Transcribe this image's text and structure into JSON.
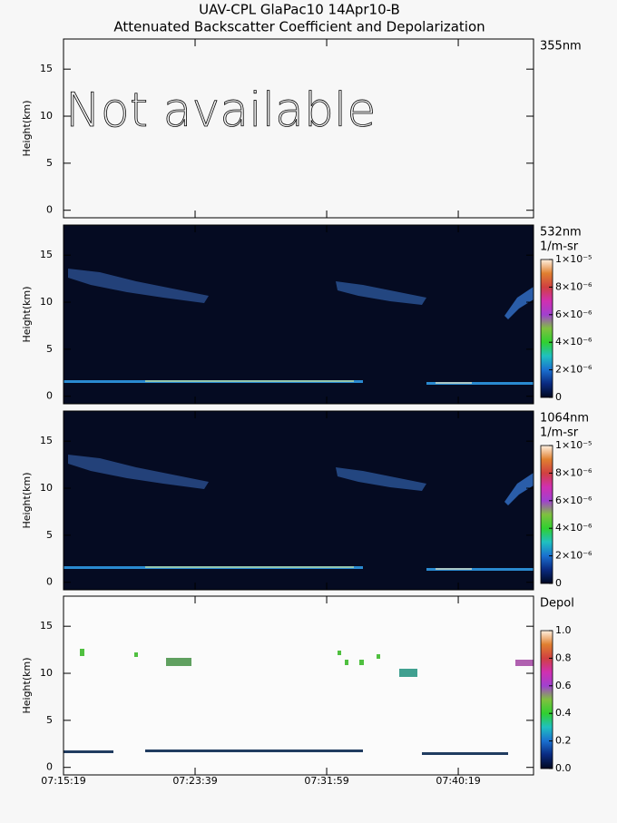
{
  "chart_data": {
    "type": "lidar-curtain",
    "title": [
      "UAV-CPL GlaPac10 14Apr10-B",
      "Attenuated Backscatter Coefficient and Depolarization"
    ],
    "ylabel": "Height(km)",
    "ylim": [
      -0.8,
      18.2
    ],
    "yticks": [
      0,
      5,
      10,
      15
    ],
    "xlim": [
      26119,
      27905
    ],
    "xticks": [
      {
        "value": 26119,
        "label": "07:15:19"
      },
      {
        "value": 26619,
        "label": "07:23:39"
      },
      {
        "value": 27119,
        "label": "07:31:59"
      },
      {
        "value": 27619,
        "label": "07:40:19"
      }
    ],
    "panels": [
      {
        "label": "355nm",
        "note": "Not available"
      },
      {
        "label": "532nm",
        "units": "1/m-sr",
        "zlim": [
          0,
          1e-05
        ],
        "zticks": [
          0,
          {
            "value": 2e-06,
            "label": "2×10⁻⁶"
          },
          {
            "value": 4e-06,
            "label": "4×10⁻⁶"
          },
          {
            "value": 6e-06,
            "label": "6×10⁻⁶"
          },
          {
            "value": 8e-06,
            "label": "8×10⁻⁶"
          },
          {
            "value": 1e-05,
            "label": "1×10⁻⁵"
          }
        ]
      },
      {
        "label": "1064nm",
        "units": "1/m-sr",
        "zlim": [
          0,
          1e-05
        ],
        "zticks": [
          0,
          {
            "value": 2e-06,
            "label": "2×10⁻⁶"
          },
          {
            "value": 4e-06,
            "label": "4×10⁻⁶"
          },
          {
            "value": 6e-06,
            "label": "6×10⁻⁶"
          },
          {
            "value": 8e-06,
            "label": "8×10⁻⁶"
          },
          {
            "value": 1e-05,
            "label": "1×10⁻⁵"
          }
        ]
      },
      {
        "label": "Depol",
        "zlim": [
          0,
          1
        ],
        "zticks": [
          {
            "value": 0,
            "label": "0.0"
          },
          0.2,
          0.4,
          0.6,
          0.8,
          {
            "value": 1,
            "label": "1.0"
          }
        ]
      }
    ]
  }
}
